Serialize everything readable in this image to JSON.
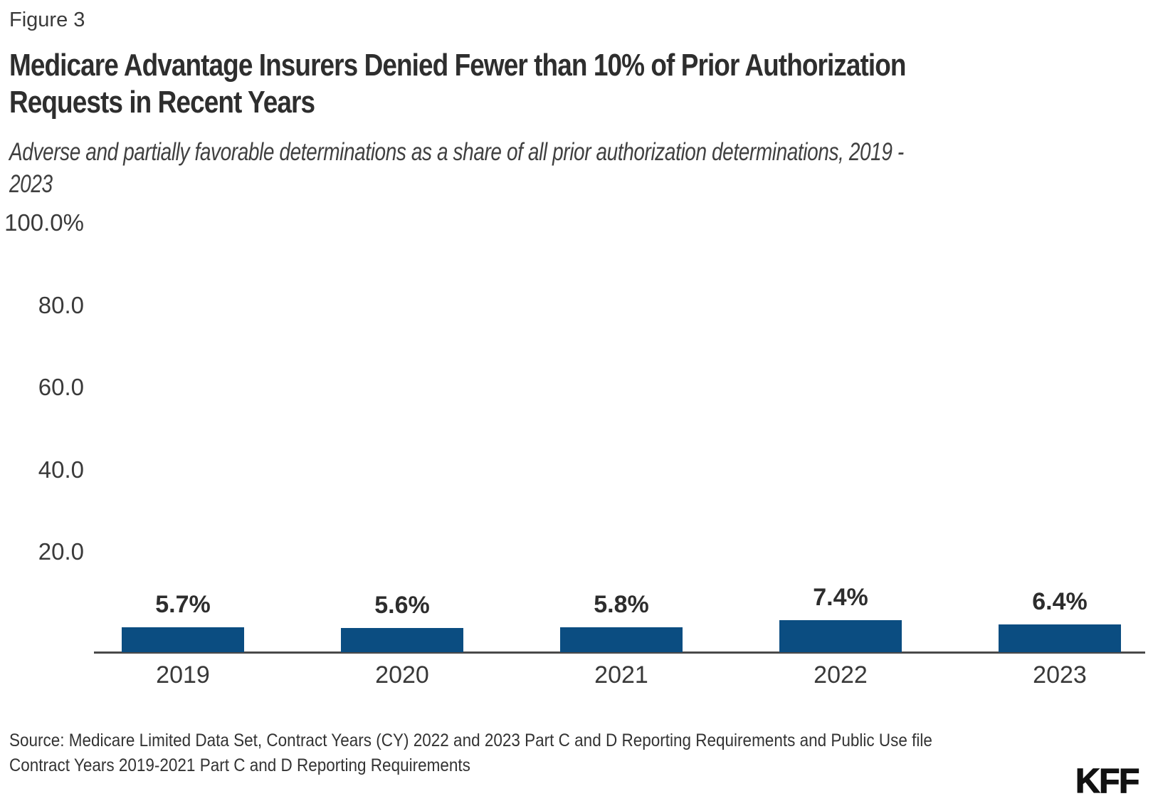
{
  "figure_label": "Figure 3",
  "title_lines": [
    "Medicare Advantage Insurers Denied Fewer than 10% of Prior Authorization",
    "Requests in Recent Years"
  ],
  "subtitle_lines": [
    "Adverse and partially favorable determinations as a share of all prior authorization determinations, 2019 -",
    "2023"
  ],
  "source": {
    "line1": "Source: Medicare Limited Data Set, Contract Years (CY) 2022 and 2023 Part C and D Reporting Requirements and Public Use file",
    "line2": "Contract Years 2019-2021 Part C and D Reporting Requirements"
  },
  "logo": "KFF",
  "colors": {
    "bar": "#0B4D81",
    "axis": "#4A4A4A",
    "text": "#333333"
  },
  "chart_data": {
    "type": "bar",
    "title": "Medicare Advantage Insurers Denied Fewer than 10% of Prior Authorization Requests in Recent Years",
    "subtitle": "Adverse and partially favorable determinations as a share of all prior authorization determinations, 2019 - 2023",
    "categories": [
      "2019",
      "2020",
      "2021",
      "2022",
      "2023"
    ],
    "values": [
      5.7,
      5.6,
      5.8,
      7.4,
      6.4
    ],
    "value_labels": [
      "5.7%",
      "5.6%",
      "5.8%",
      "7.4%",
      "6.4%"
    ],
    "xlabel": "",
    "ylabel": "",
    "ylim": [
      0,
      100
    ],
    "y_ticks": [
      100,
      80,
      60,
      40,
      20
    ],
    "y_tick_labels": [
      "100.0%",
      "80.0",
      "60.0",
      "40.0",
      "20.0"
    ],
    "grid": false,
    "legend": false,
    "bar_color": "#0B4D81"
  }
}
